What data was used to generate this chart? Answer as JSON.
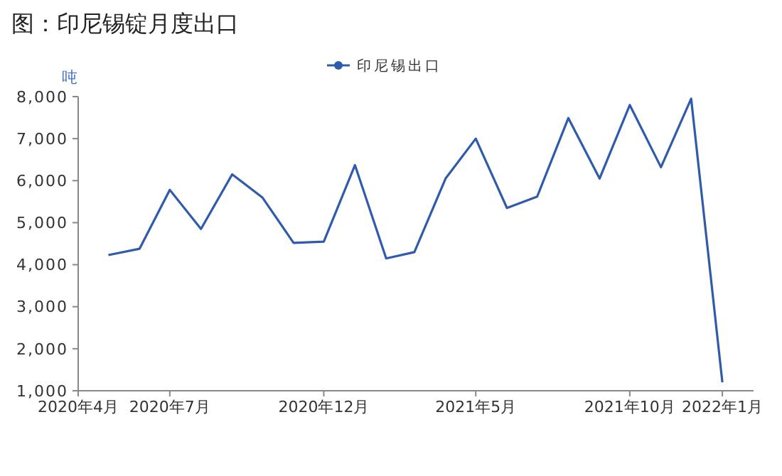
{
  "chart_data": {
    "type": "line",
    "title": "图：印尼锡锭月度出口",
    "ylabel": "吨",
    "x": [
      "2020-05",
      "2020-06",
      "2020-07",
      "2020-08",
      "2020-09",
      "2020-10",
      "2020-11",
      "2020-12",
      "2021-01",
      "2021-02",
      "2021-03",
      "2021-04",
      "2021-05",
      "2021-06",
      "2021-07",
      "2021-08",
      "2021-09",
      "2021-10",
      "2021-11",
      "2021-12",
      "2022-01"
    ],
    "series": [
      {
        "name": "印尼锡出口",
        "color": "#2f5bab",
        "values": [
          4230,
          4380,
          5780,
          4850,
          6150,
          5600,
          4520,
          4550,
          6370,
          4150,
          4300,
          6050,
          7000,
          5350,
          5620,
          7490,
          6050,
          7800,
          6320,
          7950,
          1200
        ]
      }
    ],
    "xlim": [
      "2020-04",
      "2022-02"
    ],
    "xticks": [
      {
        "value": "2020-04",
        "label": "2020年4月"
      },
      {
        "value": "2020-07",
        "label": "2020年7月"
      },
      {
        "value": "2020-12",
        "label": "2020年12月"
      },
      {
        "value": "2021-05",
        "label": "2021年5月"
      },
      {
        "value": "2021-10",
        "label": "2021年10月"
      },
      {
        "value": "2022-01",
        "label": "2022年1月"
      }
    ],
    "ylim": [
      1000,
      8000
    ],
    "yticks": [
      {
        "value": 1000,
        "label": "1,000"
      },
      {
        "value": 2000,
        "label": "2,000"
      },
      {
        "value": 3000,
        "label": "3,000"
      },
      {
        "value": 4000,
        "label": "4,000"
      },
      {
        "value": 5000,
        "label": "5,000"
      },
      {
        "value": 6000,
        "label": "6,000"
      },
      {
        "value": 7000,
        "label": "7,000"
      },
      {
        "value": 8000,
        "label": "8,000"
      }
    ],
    "grid": false,
    "legend": "top"
  }
}
